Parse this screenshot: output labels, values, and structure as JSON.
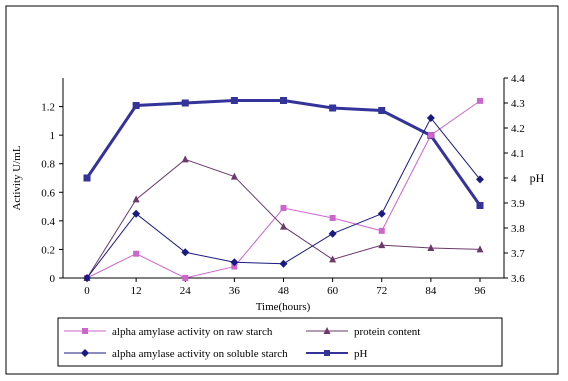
{
  "chart_data": {
    "type": "line",
    "x": [
      0,
      12,
      24,
      36,
      48,
      60,
      72,
      84,
      96
    ],
    "xlabel": "Time(hours)",
    "ylabel": "Activity U/mL",
    "y2label": "pH",
    "ylim": [
      0,
      1.4
    ],
    "y2lim": [
      3.6,
      4.4
    ],
    "yticks": [
      "0",
      "0.2",
      "0.4",
      "0.6",
      "0.8",
      "1",
      "1.2"
    ],
    "y2ticks": [
      "3.6",
      "3.7",
      "3.8",
      "3.9",
      "4",
      "4.1",
      "4.2",
      "4.3",
      "4.4"
    ],
    "xticks": [
      "0",
      "12",
      "24",
      "36",
      "48",
      "60",
      "72",
      "84",
      "96"
    ],
    "legend_position": "bottom",
    "series": [
      {
        "name": "alpha amylase activity on raw starch",
        "axis": "left",
        "color": "#cc66cc",
        "marker": "square",
        "values": [
          0,
          0.17,
          0.0,
          0.08,
          0.49,
          0.42,
          0.33,
          1.0,
          1.24
        ]
      },
      {
        "name": "protein content",
        "axis": "left",
        "color": "#6b3a6b",
        "marker": "triangle",
        "values": [
          0,
          0.55,
          0.83,
          0.71,
          0.36,
          0.13,
          0.23,
          0.21,
          0.2
        ]
      },
      {
        "name": "alpha amylase activity on soluble starch",
        "axis": "left",
        "color": "#1a1a80",
        "marker": "diamond",
        "values": [
          0,
          0.45,
          0.18,
          0.11,
          0.1,
          0.31,
          0.45,
          1.12,
          0.69
        ]
      },
      {
        "name": "pH",
        "axis": "right",
        "color": "#333399",
        "marker": "square",
        "values": [
          4.0,
          4.29,
          4.3,
          4.31,
          4.31,
          4.28,
          4.27,
          4.17,
          3.89
        ]
      }
    ]
  }
}
